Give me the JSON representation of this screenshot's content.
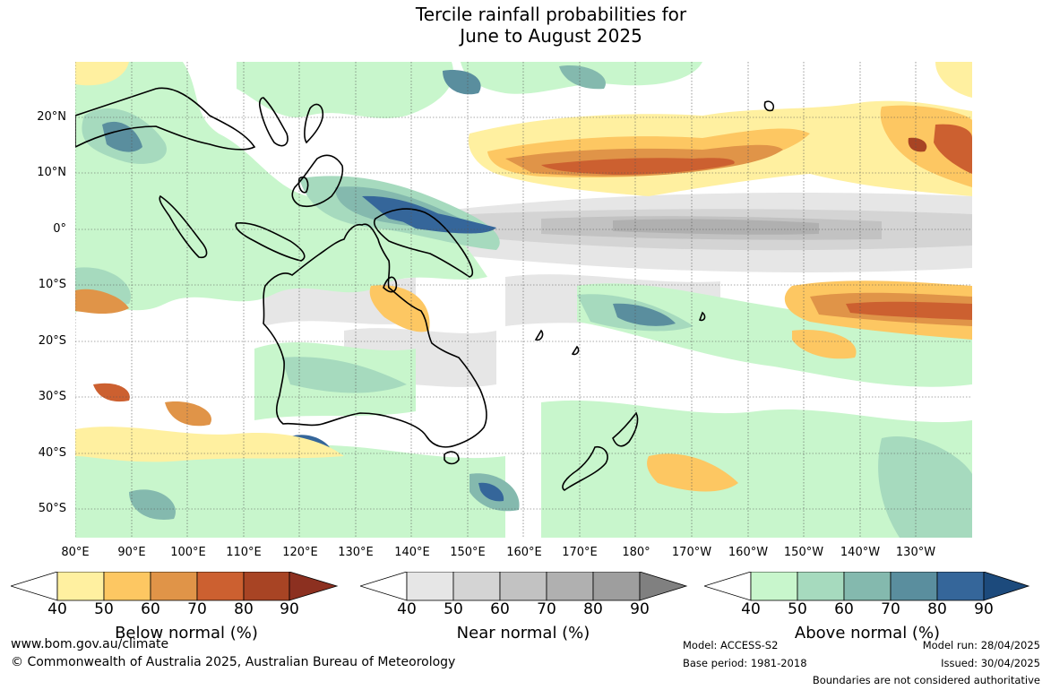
{
  "title": {
    "line1": "Tercile rainfall probabilities for",
    "line2": "June to August 2025"
  },
  "map": {
    "lat_labels": [
      "20°N",
      "10°N",
      "0°",
      "10°S",
      "20°S",
      "30°S",
      "40°S",
      "50°S"
    ],
    "lon_labels": [
      "80°E",
      "90°E",
      "100°E",
      "110°E",
      "120°E",
      "130°E",
      "140°E",
      "150°E",
      "160°E",
      "170°E",
      "180°",
      "170°W",
      "160°W",
      "150°W",
      "140°W",
      "130°W"
    ],
    "colors": {
      "below": [
        "#fff0a0",
        "#fdc762",
        "#e09448",
        "#cc6030",
        "#a84424",
        "#8c3020"
      ],
      "near": [
        "#e6e6e6",
        "#d4d4d4",
        "#c2c2c2",
        "#b0b0b0",
        "#9e9e9e",
        "#808080"
      ],
      "above": [
        "#c8f6cc",
        "#a6dabe",
        "#84b9ae",
        "#5a8e9e",
        "#35669a",
        "#1c4a7c"
      ]
    }
  },
  "colorbars": [
    {
      "name": "Below normal (%)",
      "ticks": [
        "40",
        "50",
        "60",
        "70",
        "80",
        "90"
      ]
    },
    {
      "name": "Near normal (%)",
      "ticks": [
        "40",
        "50",
        "60",
        "70",
        "80",
        "90"
      ]
    },
    {
      "name": "Above normal (%)",
      "ticks": [
        "40",
        "50",
        "60",
        "70",
        "80",
        "90"
      ]
    }
  ],
  "footer": {
    "website": "www.bom.gov.au/climate",
    "copyright": "© Commonwealth of Australia 2025, Australian Bureau of Meteorology",
    "model": "Model: ACCESS-S2",
    "base_period": "Base period: 1981-2018",
    "model_run": "Model run: 28/04/2025",
    "issued": "Issued: 30/04/2025",
    "disclaimer": "Boundaries are not considered authoritative"
  }
}
